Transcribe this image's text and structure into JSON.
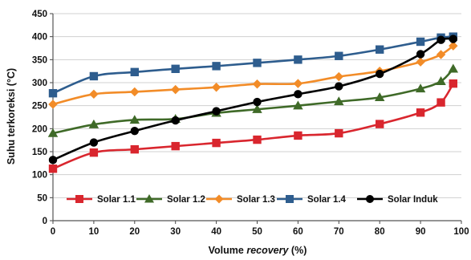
{
  "chart_data": {
    "type": "line",
    "title": "",
    "xlabel_prefix": "Volume ",
    "xlabel_italic": "recovery",
    "xlabel_suffix": " (%)",
    "ylabel": "Suhu terkoreksi (°C)",
    "x": [
      0,
      10,
      20,
      30,
      40,
      50,
      60,
      70,
      80,
      90,
      95,
      98
    ],
    "xticks": [
      0,
      10,
      20,
      30,
      40,
      50,
      60,
      70,
      80,
      90,
      100
    ],
    "yticks": [
      0,
      50,
      100,
      150,
      200,
      250,
      300,
      350,
      400,
      450
    ],
    "xlim": [
      0,
      100
    ],
    "ylim": [
      0,
      450
    ],
    "grid": "horizontal",
    "legend_position": "bottom-inside",
    "series": [
      {
        "name": "Solar 1.1",
        "color": "#d9262e",
        "marker": "square",
        "values": [
          113,
          148,
          155,
          162,
          169,
          176,
          185,
          190,
          210,
          235,
          257,
          298
        ]
      },
      {
        "name": "Solar 1.2",
        "color": "#3f6a28",
        "marker": "triangle",
        "values": [
          190,
          209,
          219,
          221,
          234,
          242,
          250,
          259,
          268,
          287,
          303,
          330
        ]
      },
      {
        "name": "Solar 1.3",
        "color": "#f28c28",
        "marker": "diamond",
        "values": [
          253,
          275,
          280,
          285,
          290,
          297,
          298,
          313,
          325,
          345,
          361,
          380
        ]
      },
      {
        "name": "Solar 1.4",
        "color": "#2e5d8e",
        "marker": "square",
        "values": [
          277,
          314,
          323,
          330,
          336,
          343,
          350,
          358,
          372,
          389,
          398,
          400
        ]
      },
      {
        "name": "Solar Induk",
        "color": "#000000",
        "marker": "circle",
        "values": [
          132,
          170,
          195,
          218,
          238,
          258,
          275,
          292,
          319,
          362,
          393,
          395
        ]
      }
    ]
  }
}
